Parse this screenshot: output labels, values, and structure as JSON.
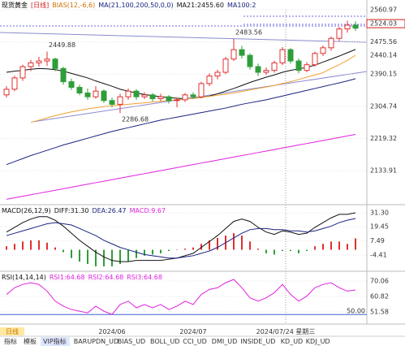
{
  "chart_data": [
    {
      "type": "candlestick",
      "header": [
        "现货黄金",
        "[日线]",
        "BIAS(12,-6,6)",
        "MA(21,100,200,50,0,0)",
        "MA21:2455.60",
        "MA100:2"
      ],
      "categories": [
        null,
        null,
        null,
        null,
        null,
        null,
        null,
        null,
        null,
        null,
        null,
        null,
        null,
        "2024/06",
        null,
        null,
        null,
        null,
        null,
        null,
        null,
        null,
        null,
        "2024/07",
        null,
        null,
        null,
        null,
        null,
        null,
        null,
        null,
        null,
        null,
        null,
        null,
        null,
        null,
        null,
        null,
        null,
        null,
        null,
        null
      ],
      "cursor_label": "2024/07/24 星期三",
      "last_price": 2524.03,
      "up_color": "#e03030",
      "down_color": "#2e9e3a",
      "candles": [
        [
          2335,
          2358,
          2328,
          2350
        ],
        [
          2350,
          2386,
          2345,
          2380
        ],
        [
          2380,
          2415,
          2372,
          2410
        ],
        [
          2410,
          2428,
          2398,
          2420
        ],
        [
          2420,
          2436,
          2410,
          2425
        ],
        [
          2425,
          2449.88,
          2412,
          2430
        ],
        [
          2430,
          2434,
          2398,
          2405
        ],
        [
          2405,
          2410,
          2362,
          2370
        ],
        [
          2370,
          2378,
          2348,
          2355
        ],
        [
          2355,
          2362,
          2334,
          2340
        ],
        [
          2340,
          2352,
          2322,
          2330
        ],
        [
          2330,
          2358,
          2325,
          2345
        ],
        [
          2345,
          2350,
          2314,
          2320
        ],
        [
          2320,
          2328,
          2302,
          2310
        ],
        [
          2310,
          2338,
          2286.68,
          2330
        ],
        [
          2330,
          2352,
          2322,
          2345
        ],
        [
          2345,
          2350,
          2322,
          2330
        ],
        [
          2330,
          2342,
          2324,
          2335
        ],
        [
          2335,
          2340,
          2318,
          2325
        ],
        [
          2325,
          2338,
          2318,
          2330
        ],
        [
          2330,
          2334,
          2312,
          2320
        ],
        [
          2320,
          2328,
          2302,
          2322
        ],
        [
          2322,
          2340,
          2316,
          2335
        ],
        [
          2335,
          2342,
          2324,
          2330
        ],
        [
          2330,
          2370,
          2326,
          2365
        ],
        [
          2365,
          2392,
          2358,
          2385
        ],
        [
          2385,
          2402,
          2376,
          2395
        ],
        [
          2395,
          2436,
          2390,
          2430
        ],
        [
          2430,
          2483.56,
          2425,
          2455
        ],
        [
          2455,
          2465,
          2432,
          2440
        ],
        [
          2440,
          2445,
          2402,
          2410
        ],
        [
          2410,
          2418,
          2385,
          2395
        ],
        [
          2395,
          2408,
          2388,
          2400
        ],
        [
          2400,
          2426,
          2394,
          2420
        ],
        [
          2420,
          2462,
          2414,
          2455
        ],
        [
          2455,
          2460,
          2418,
          2425
        ],
        [
          2425,
          2432,
          2392,
          2400
        ],
        [
          2400,
          2422,
          2395,
          2415
        ],
        [
          2415,
          2450,
          2410,
          2445
        ],
        [
          2445,
          2466,
          2438,
          2460
        ],
        [
          2460,
          2490,
          2452,
          2485
        ],
        [
          2485,
          2515,
          2478,
          2510
        ],
        [
          2510,
          2532,
          2500,
          2520
        ],
        [
          2520,
          2530,
          2505,
          2512
        ]
      ],
      "series": [
        {
          "name": "MA21",
          "color": "#111111",
          "values": [
            2395,
            2398,
            2400,
            2403,
            2405,
            2404,
            2402,
            2398,
            2392,
            2386,
            2380,
            2372,
            2365,
            2358,
            2350,
            2345,
            2340,
            2336,
            2333,
            2330,
            2328,
            2326,
            2325,
            2326,
            2328,
            2332,
            2338,
            2345,
            2352,
            2360,
            2368,
            2375,
            2382,
            2388,
            2395,
            2400,
            2404,
            2408,
            2414,
            2422,
            2430,
            2438,
            2447,
            2455.6
          ]
        },
        {
          "name": "MA100",
          "color": "#1a237e",
          "values": [
            2150,
            2158,
            2166,
            2174,
            2181,
            2188,
            2195,
            2202,
            2208,
            2214,
            2220,
            2226,
            2232,
            2238,
            2243,
            2248,
            2253,
            2258,
            2263,
            2268,
            2272,
            2276,
            2280,
            2284,
            2288,
            2292,
            2296,
            2300,
            2305,
            2310,
            2314,
            2318,
            2322,
            2327,
            2332,
            2337,
            2342,
            2347,
            2352,
            2357,
            2362,
            2367,
            2372,
            2378
          ]
        },
        {
          "color": "#e020e0",
          "values": [
            2058,
            2062,
            2066,
            2070,
            2074,
            2078,
            2082,
            2086,
            2090,
            2094,
            2098,
            2102,
            2106,
            2110,
            2114,
            2118,
            2122,
            2126,
            2130,
            2134,
            2138,
            2142,
            2146,
            2150,
            2154,
            2158,
            2162,
            2166,
            2170,
            2174,
            2178,
            2182,
            2186,
            2190,
            2194,
            2198,
            2202,
            2206,
            2210,
            2214,
            2218,
            2222,
            2226,
            2230
          ]
        },
        {
          "color": "#f0a030",
          "values": [
            null,
            null,
            null,
            2262,
            2268,
            2274,
            2280,
            2285,
            2290,
            2294,
            2298,
            2301,
            2304,
            2306,
            2308,
            2310,
            2312,
            2314,
            2316,
            2318,
            2320,
            2322,
            2324,
            2326,
            2328,
            2331,
            2334,
            2337,
            2340,
            2344,
            2348,
            2352,
            2356,
            2360,
            2365,
            2370,
            2376,
            2382,
            2388,
            2394,
            2405,
            2415,
            2427,
            2440.14
          ]
        }
      ],
      "ylim": [
        2048,
        2576
      ],
      "yticks": [
        {
          "value": 2560.97,
          "label": "2560.97"
        },
        {
          "value": 2475.56,
          "label": "2475.56"
        },
        {
          "value": 2390.15,
          "label": "2390.15"
        },
        {
          "value": 2304.74,
          "label": "2304.74"
        },
        {
          "value": 2219.32,
          "label": "2219.32"
        },
        {
          "value": 2133.91,
          "label": "2133.91"
        }
      ]
    },
    {
      "type": "macd",
      "header": [
        "MACD(26,12,9)",
        "DIFF:31.30",
        "DEA:26.47",
        "MACD:9.67"
      ],
      "series": [
        {
          "color": "#111111",
          "values": [
            15,
            19,
            23,
            26,
            28,
            28,
            25,
            20,
            14,
            8,
            3,
            -2,
            -6,
            -9,
            -10,
            -10,
            -9,
            -9,
            -9,
            -9,
            -8,
            -7,
            -5,
            -3,
            2,
            7,
            12,
            18,
            24,
            26,
            24,
            19,
            15,
            13,
            16,
            15,
            13,
            14,
            19,
            23,
            27,
            30,
            30,
            31.3
          ]
        },
        {
          "color": "#1a237e",
          "values": [
            12,
            14,
            16,
            18,
            20,
            22,
            23,
            22,
            21,
            18,
            15,
            12,
            8,
            5,
            2,
            0,
            -2,
            -4,
            -5,
            -6,
            -7,
            -7,
            -6,
            -5,
            -3,
            -1,
            2,
            6,
            10,
            14,
            17,
            18,
            18,
            17,
            17,
            16,
            16,
            15,
            16,
            18,
            20,
            23,
            25,
            26.47
          ]
        }
      ],
      "histogram": [
        3,
        5,
        7,
        8,
        8,
        6,
        2,
        -2,
        -7,
        -10,
        -12,
        -14,
        -14,
        -14,
        -12,
        -10,
        -7,
        -5,
        -4,
        -3,
        -1,
        0,
        1,
        2,
        5,
        8,
        10,
        12,
        14,
        12,
        7,
        1,
        -3,
        -4,
        -1,
        -1,
        -3,
        -1,
        3,
        5,
        7,
        7,
        5,
        9.67
      ],
      "up_color": "#e03030",
      "down_color": "#2e9e3a",
      "ylim": [
        -16.8,
        36.1
      ],
      "yticks": [
        {
          "value": 31.3,
          "label": "31.30"
        },
        {
          "value": 19.45,
          "label": "19.45"
        },
        {
          "value": 7.49,
          "label": "7.49"
        },
        {
          "value": -4.41,
          "label": "-4.41"
        }
      ]
    },
    {
      "type": "rsi",
      "header": [
        "RSI(14,14,14)",
        "RSI1:64.68",
        "RSI2:64.68",
        "RSI3:64.68"
      ],
      "series": [
        {
          "color": "#e020e0",
          "values": [
            62,
            66,
            68,
            69,
            68,
            64,
            58,
            55,
            53,
            52,
            51,
            55,
            52,
            50,
            56,
            58,
            54,
            56,
            54,
            56,
            53,
            55,
            58,
            56,
            62,
            65,
            66,
            69,
            71,
            66,
            60,
            58,
            60,
            63,
            68,
            62,
            58,
            61,
            66,
            68,
            69,
            66,
            64,
            64.68
          ]
        }
      ],
      "reference": {
        "value": 50,
        "label": "50.00"
      },
      "ylim": [
        45.75,
        74.4
      ],
      "yticks": [
        {
          "value": 70.06,
          "label": "70.06"
        },
        {
          "value": 60.82,
          "label": "60.82"
        },
        {
          "value": 51.58,
          "label": "51.58"
        }
      ]
    }
  ],
  "period_tab": "日线",
  "tabs": [
    "指标",
    "模板",
    "VIP指标",
    "BARUPDN_UD",
    "BIAS_UD",
    "BOLL_UD",
    "CCI_UD",
    "DMI_UD",
    "INSIDE_UD",
    "KD_UD",
    "KDJ_UD"
  ]
}
